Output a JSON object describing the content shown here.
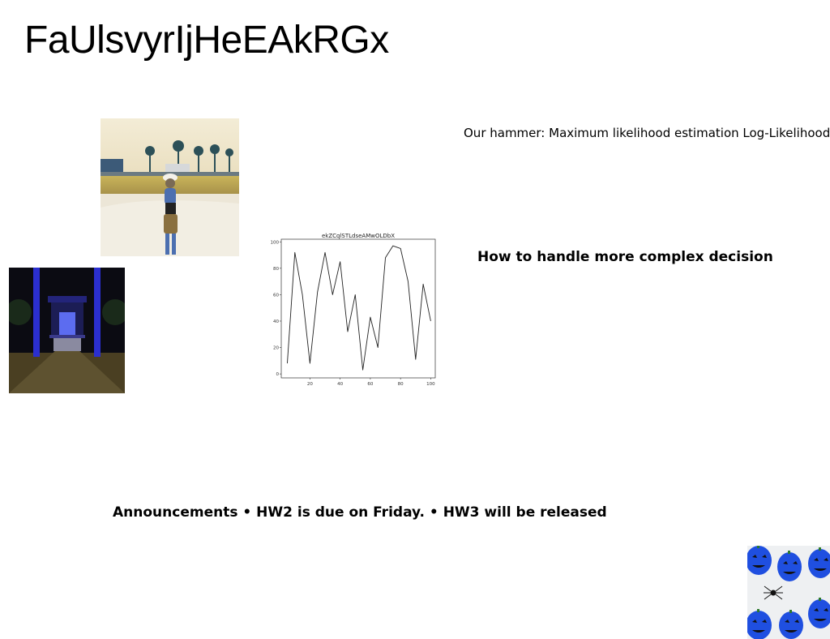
{
  "slide": {
    "title": "FaUlsvyrIjHeEAkRGx",
    "text1": "Our hammer: Maximum likelihood estimation Log-Likelihood of",
    "text2": "How to handle more complex decision",
    "text3": "Announcements • HW2 is due on Friday. • HW3 will be released"
  },
  "images": {
    "beach": "woman-on-beach-photo",
    "temple": "night-temple-gate-photo",
    "pumpkins": "blue-pumpkin-cutouts-photo"
  },
  "chart_data": {
    "type": "line",
    "title": "ekZCqlSTLdseAMwOLDbX",
    "xlabel": "",
    "ylabel": "",
    "xlim": [
      1,
      103
    ],
    "ylim": [
      -3,
      102
    ],
    "xticks": [
      20,
      40,
      60,
      80,
      100
    ],
    "yticks": [
      0,
      20,
      40,
      60,
      80,
      100
    ],
    "grid": false,
    "x": [
      5,
      10,
      15,
      20,
      25,
      30,
      35,
      40,
      45,
      50,
      55,
      60,
      65,
      70,
      75,
      80,
      85,
      90,
      95,
      100
    ],
    "y": [
      8,
      92,
      60,
      8,
      62,
      92,
      60,
      85,
      32,
      60,
      3,
      43,
      20,
      88,
      97,
      95,
      70,
      11,
      68,
      40
    ],
    "line_color": "#222222"
  }
}
